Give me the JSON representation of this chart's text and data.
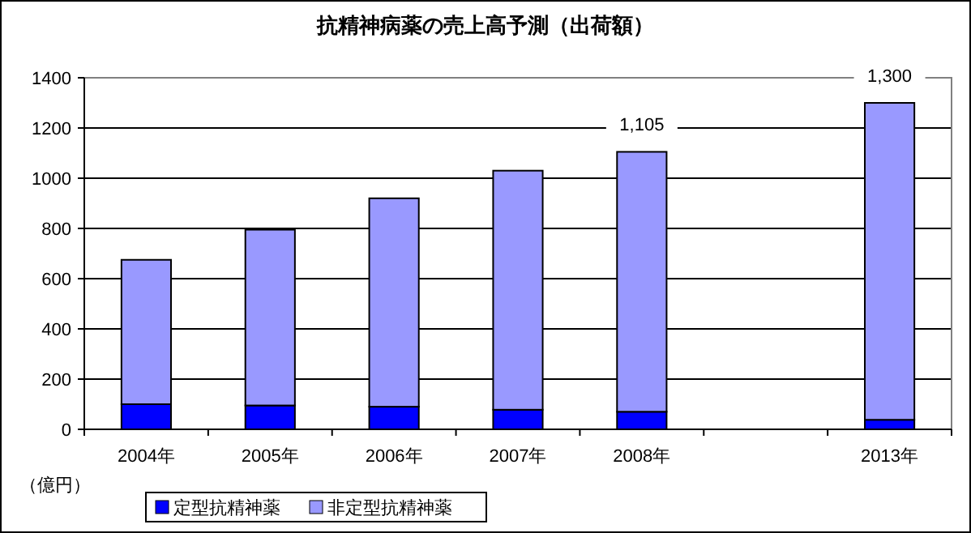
{
  "chart_data": {
    "type": "bar",
    "title": "抗精神病薬の売上高予測（出荷額）",
    "ylabel": "（億円）",
    "categories": [
      "2004年",
      "2005年",
      "2006年",
      "2007年",
      "2008年",
      null,
      "2013年"
    ],
    "stacked": true,
    "series": [
      {
        "name": "定型抗精神薬",
        "color": "#0000ff",
        "values": [
          100,
          95,
          90,
          78,
          70,
          null,
          38
        ]
      },
      {
        "name": "非定型抗精神薬",
        "color": "#9999ff",
        "values": [
          575,
          700,
          830,
          952,
          1035,
          null,
          1262
        ]
      }
    ],
    "totals": [
      null,
      null,
      null,
      null,
      "1,105",
      null,
      "1,300"
    ],
    "ylim": [
      0,
      1400
    ],
    "yticks": [
      0,
      200,
      400,
      600,
      800,
      1000,
      1200,
      1400
    ],
    "grid": "y",
    "legend": "bottom"
  }
}
